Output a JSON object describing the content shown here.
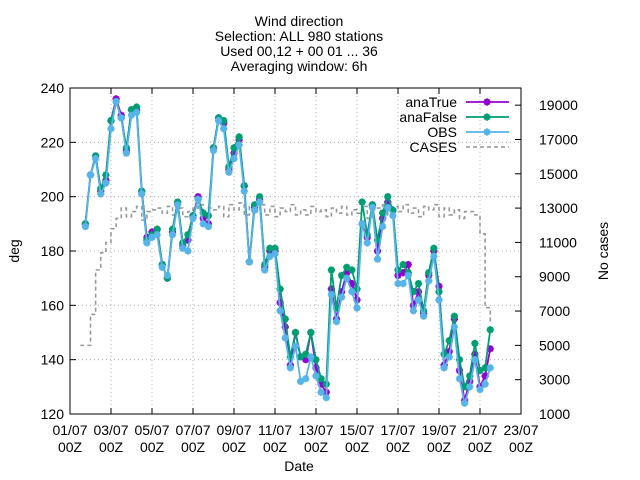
{
  "chart_data": {
    "type": "line",
    "title_lines": [
      "Wind direction",
      "Selection: ALL    980 stations",
      "Used 00,12 + 00 01 ... 36",
      "Averaging window:  6h"
    ],
    "xlabel": "Date",
    "ylabel": "deg",
    "y2label": "No cases",
    "xlim": [
      0,
      528
    ],
    "ylim": [
      120,
      240
    ],
    "y2lim": [
      1000,
      20000
    ],
    "x_unit": "hours since 01/07 00Z",
    "x_ticks": [
      {
        "value": 0,
        "line1": "01/07",
        "line2": "00Z"
      },
      {
        "value": 48,
        "line1": "03/07",
        "line2": "00Z"
      },
      {
        "value": 96,
        "line1": "05/07",
        "line2": "00Z"
      },
      {
        "value": 144,
        "line1": "07/07",
        "line2": "00Z"
      },
      {
        "value": 192,
        "line1": "09/07",
        "line2": "00Z"
      },
      {
        "value": 240,
        "line1": "11/07",
        "line2": "00Z"
      },
      {
        "value": 288,
        "line1": "13/07",
        "line2": "00Z"
      },
      {
        "value": 336,
        "line1": "15/07",
        "line2": "00Z"
      },
      {
        "value": 384,
        "line1": "17/07",
        "line2": "00Z"
      },
      {
        "value": 432,
        "line1": "19/07",
        "line2": "00Z"
      },
      {
        "value": 480,
        "line1": "21/07",
        "line2": "00Z"
      },
      {
        "value": 528,
        "line1": "23/07",
        "line2": "00Z"
      }
    ],
    "y_ticks": [
      120,
      140,
      160,
      180,
      200,
      220,
      240
    ],
    "y2_ticks": [
      1000,
      3000,
      5000,
      7000,
      9000,
      11000,
      13000,
      15000,
      17000,
      19000
    ],
    "grid": true,
    "legend_position": "top-right",
    "series": [
      {
        "name": "anaTrue",
        "color": "#9400d3",
        "axis": "left",
        "style": "line-points",
        "x": [
          18,
          24,
          30,
          36,
          42,
          48,
          54,
          60,
          66,
          72,
          78,
          84,
          90,
          96,
          102,
          108,
          114,
          120,
          126,
          132,
          138,
          144,
          150,
          156,
          162,
          168,
          174,
          180,
          186,
          192,
          198,
          204,
          210,
          216,
          222,
          228,
          234,
          240,
          246,
          252,
          258,
          264,
          270,
          276,
          282,
          288,
          294,
          300,
          306,
          312,
          318,
          324,
          330,
          336,
          342,
          348,
          354,
          360,
          366,
          372,
          378,
          384,
          390,
          396,
          402,
          408,
          414,
          420,
          426,
          432,
          438,
          444,
          450,
          456,
          462,
          468,
          474,
          480,
          486,
          492
        ],
        "values": [
          190,
          208,
          215,
          202,
          206,
          228,
          236,
          230,
          217,
          232,
          232,
          202,
          185,
          187,
          188,
          175,
          170,
          187,
          198,
          182,
          184,
          193,
          200,
          192,
          190,
          218,
          229,
          227,
          210,
          216,
          221,
          204,
          176,
          196,
          199,
          174,
          180,
          180,
          161,
          152,
          138,
          150,
          141,
          140,
          150,
          137,
          131,
          128,
          166,
          155,
          165,
          172,
          168,
          162,
          190,
          185,
          197,
          180,
          192,
          198,
          195,
          171,
          172,
          175,
          160,
          165,
          157,
          171,
          180,
          167,
          138,
          143,
          155,
          136,
          125,
          132,
          142,
          130,
          134,
          144
        ]
      },
      {
        "name": "anaFalse",
        "color": "#009e73",
        "axis": "left",
        "style": "line-points",
        "x": [
          18,
          24,
          30,
          36,
          42,
          48,
          54,
          60,
          66,
          72,
          78,
          84,
          90,
          96,
          102,
          108,
          114,
          120,
          126,
          132,
          138,
          144,
          150,
          156,
          162,
          168,
          174,
          180,
          186,
          192,
          198,
          204,
          210,
          216,
          222,
          228,
          234,
          240,
          246,
          252,
          258,
          264,
          270,
          276,
          282,
          288,
          294,
          300,
          306,
          312,
          318,
          324,
          330,
          336,
          342,
          348,
          354,
          360,
          366,
          372,
          378,
          384,
          390,
          396,
          402,
          408,
          414,
          420,
          426,
          432,
          438,
          444,
          450,
          456,
          462,
          468,
          474,
          480,
          486,
          492
        ],
        "values": [
          190,
          208,
          215,
          203,
          208,
          228,
          235,
          229,
          218,
          232,
          233,
          202,
          184,
          186,
          188,
          175,
          170,
          188,
          198,
          183,
          186,
          193,
          199,
          194,
          193,
          218,
          229,
          228,
          211,
          218,
          222,
          204,
          176,
          197,
          200,
          175,
          181,
          181,
          166,
          155,
          141,
          150,
          141,
          142,
          150,
          140,
          133,
          131,
          173,
          159,
          171,
          174,
          173,
          166,
          198,
          186,
          197,
          184,
          194,
          200,
          195,
          173,
          175,
          172,
          165,
          168,
          158,
          172,
          181,
          165,
          142,
          147,
          156,
          140,
          130,
          134,
          146,
          136,
          137,
          151
        ]
      },
      {
        "name": "OBS",
        "color": "#56b4e9",
        "axis": "left",
        "style": "line-points",
        "x": [
          18,
          24,
          30,
          36,
          42,
          48,
          54,
          60,
          66,
          72,
          78,
          84,
          90,
          96,
          102,
          108,
          114,
          120,
          126,
          132,
          138,
          144,
          150,
          156,
          162,
          168,
          174,
          180,
          186,
          192,
          198,
          204,
          210,
          216,
          222,
          228,
          234,
          240,
          246,
          252,
          258,
          264,
          270,
          276,
          282,
          288,
          294,
          300,
          306,
          312,
          318,
          324,
          330,
          336,
          342,
          348,
          354,
          360,
          366,
          372,
          378,
          384,
          390,
          396,
          402,
          408,
          414,
          420,
          426,
          432,
          438,
          444,
          450,
          456,
          462,
          468,
          474,
          480,
          486,
          492
        ],
        "values": [
          189,
          208,
          214,
          201,
          205,
          225,
          235,
          229,
          216,
          230,
          231,
          201,
          183,
          185,
          186,
          174,
          171,
          186,
          197,
          181,
          180,
          192,
          199,
          190,
          189,
          217,
          228,
          225,
          209,
          214,
          219,
          202,
          176,
          195,
          198,
          173,
          178,
          179,
          158,
          148,
          137,
          145,
          132,
          133,
          141,
          134,
          128,
          126,
          164,
          154,
          163,
          170,
          165,
          159,
          190,
          183,
          196,
          177,
          189,
          196,
          193,
          168,
          168,
          171,
          158,
          162,
          156,
          169,
          178,
          162,
          137,
          141,
          152,
          133,
          124,
          130,
          140,
          129,
          131,
          137
        ]
      },
      {
        "name": "CASES",
        "color": "#999999",
        "axis": "right",
        "style": "dashed-step",
        "x": [
          0,
          12,
          18,
          24,
          30,
          36,
          42,
          48,
          54,
          60,
          66,
          72,
          78,
          84,
          90,
          96,
          102,
          108,
          114,
          120,
          126,
          132,
          138,
          144,
          150,
          156,
          162,
          168,
          174,
          180,
          186,
          192,
          198,
          204,
          210,
          216,
          222,
          228,
          234,
          240,
          246,
          252,
          258,
          264,
          270,
          276,
          282,
          288,
          294,
          300,
          306,
          312,
          318,
          324,
          330,
          336,
          342,
          348,
          354,
          360,
          366,
          372,
          378,
          384,
          390,
          396,
          402,
          408,
          414,
          420,
          426,
          432,
          438,
          444,
          450,
          456,
          462,
          468,
          474,
          480,
          486,
          492
        ],
        "values": [
          null,
          5000,
          5000,
          6800,
          9400,
          10400,
          11000,
          11800,
          12400,
          13000,
          12500,
          12800,
          13100,
          12300,
          12800,
          12900,
          13000,
          12700,
          13100,
          12600,
          13000,
          12500,
          12800,
          13000,
          13200,
          12700,
          13000,
          12900,
          13100,
          12500,
          13200,
          12900,
          13300,
          12600,
          13100,
          12800,
          13200,
          12600,
          13100,
          12500,
          13000,
          12800,
          13200,
          12600,
          12900,
          12600,
          13100,
          12800,
          12900,
          12500,
          13000,
          12700,
          13100,
          12600,
          12900,
          12700,
          13100,
          12400,
          12900,
          13000,
          13200,
          12600,
          13100,
          12800,
          13200,
          12700,
          13000,
          12500,
          13100,
          12900,
          13200,
          12500,
          13000,
          12600,
          12900,
          12400,
          12800,
          12800,
          12600,
          11500,
          7200,
          6300
        ]
      }
    ]
  }
}
